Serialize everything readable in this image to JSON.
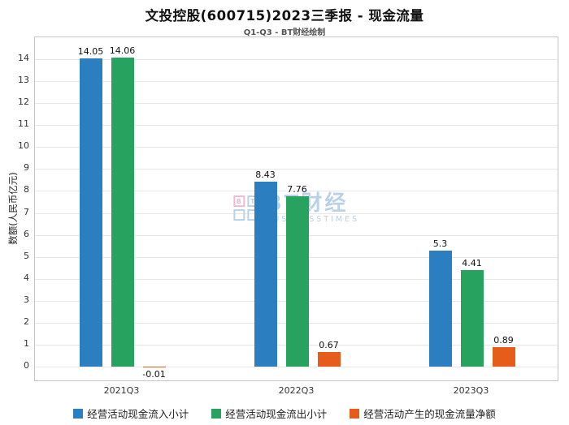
{
  "watermark": {
    "logo_letters": [
      "B",
      "T"
    ],
    "title": "BT财经",
    "subtitle": "BUSINESSTIMES"
  },
  "chart_data": {
    "type": "bar",
    "title": "文投控股(600715)2023三季报 - 现金流量",
    "subtitle": "Q1-Q3 - BT财经绘制",
    "ylabel": "数额(人民币亿元)",
    "xlabel": "",
    "categories": [
      "2021Q3",
      "2022Q3",
      "2023Q3"
    ],
    "series": [
      {
        "name": "经营活动现金流入小计",
        "color": "#2b7fc0",
        "values": [
          14.05,
          8.43,
          5.3
        ]
      },
      {
        "name": "经营活动现金流出小计",
        "color": "#27a35f",
        "values": [
          14.06,
          7.76,
          4.41
        ]
      },
      {
        "name": "经营活动产生的现金流量净额",
        "color": "#e65c1b",
        "values": [
          -0.01,
          0.67,
          0.89
        ]
      }
    ],
    "bar_labels": [
      [
        "14.05",
        "8.43",
        "5.3"
      ],
      [
        "14.06",
        "7.76",
        "4.41"
      ],
      [
        "-0.01",
        "0.67",
        "0.89"
      ]
    ],
    "yticks": [
      0,
      1,
      2,
      3,
      4,
      5,
      6,
      7,
      8,
      9,
      10,
      11,
      12,
      13,
      14
    ],
    "ylim": [
      -0.7,
      15
    ],
    "grid": true,
    "legend_position": "bottom",
    "axis_text_color": "#333333",
    "bar_label_color": "#111111"
  }
}
